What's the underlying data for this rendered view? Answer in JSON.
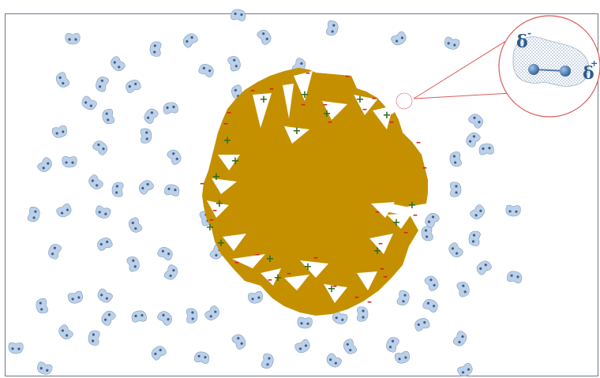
{
  "figure": {
    "particle_color": "#c49000",
    "positive_color": "#2f6b1e",
    "negative_color": "#d42020",
    "solvent_color": "#bcd0e8",
    "solvent_edge_color": "#6f8fb5",
    "zoom_circle_color": "#d95a5a",
    "positive_symbol": "+",
    "negative_symbol": "–"
  },
  "inset": {
    "delta_minus": "δ",
    "delta_minus_sign": "-",
    "delta_plus": "δ",
    "delta_plus_sign": "+"
  }
}
